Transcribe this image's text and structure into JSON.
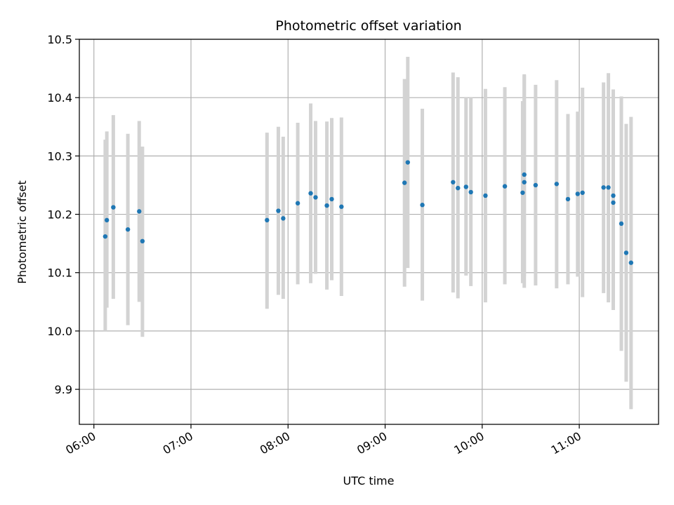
{
  "chart_data": {
    "type": "scatter",
    "title": "Photometric offset variation",
    "xlabel": "UTC time",
    "ylabel": "Photometric offset",
    "x_format": "HH:MM",
    "xlim": [
      "05:51",
      "11:49"
    ],
    "ylim": [
      9.84,
      10.5
    ],
    "x_ticks": [
      "06:00",
      "07:00",
      "08:00",
      "09:00",
      "10:00",
      "11:00"
    ],
    "y_ticks": [
      "9.9",
      "10.0",
      "10.1",
      "10.2",
      "10.3",
      "10.4",
      "10.5"
    ],
    "grid": true,
    "legend": "none",
    "colors": {
      "points": "#1f77b4",
      "error_bars": "#d3d3d3",
      "grid": "#b0b0b0"
    },
    "series": [
      {
        "points": [
          {
            "x": "06:07",
            "y": 10.162,
            "ylo": 10.0,
            "yhi": 10.328
          },
          {
            "x": "06:08",
            "y": 10.19,
            "ylo": 10.04,
            "yhi": 10.342
          },
          {
            "x": "06:12",
            "y": 10.212,
            "ylo": 10.055,
            "yhi": 10.37
          },
          {
            "x": "06:21",
            "y": 10.174,
            "ylo": 10.01,
            "yhi": 10.338
          },
          {
            "x": "06:28",
            "y": 10.205,
            "ylo": 10.05,
            "yhi": 10.36
          },
          {
            "x": "06:30",
            "y": 10.154,
            "ylo": 9.99,
            "yhi": 10.316
          },
          {
            "x": "07:47",
            "y": 10.19,
            "ylo": 10.038,
            "yhi": 10.34
          },
          {
            "x": "07:54",
            "y": 10.206,
            "ylo": 10.062,
            "yhi": 10.35
          },
          {
            "x": "07:57",
            "y": 10.193,
            "ylo": 10.055,
            "yhi": 10.333
          },
          {
            "x": "08:06",
            "y": 10.219,
            "ylo": 10.08,
            "yhi": 10.357
          },
          {
            "x": "08:14",
            "y": 10.236,
            "ylo": 10.082,
            "yhi": 10.39
          },
          {
            "x": "08:17",
            "y": 10.229,
            "ylo": 10.098,
            "yhi": 10.36
          },
          {
            "x": "08:24",
            "y": 10.215,
            "ylo": 10.071,
            "yhi": 10.359
          },
          {
            "x": "08:27",
            "y": 10.226,
            "ylo": 10.087,
            "yhi": 10.365
          },
          {
            "x": "08:33",
            "y": 10.213,
            "ylo": 10.06,
            "yhi": 10.366
          },
          {
            "x": "09:12",
            "y": 10.254,
            "ylo": 10.076,
            "yhi": 10.432
          },
          {
            "x": "09:14",
            "y": 10.289,
            "ylo": 10.108,
            "yhi": 10.47
          },
          {
            "x": "09:23",
            "y": 10.216,
            "ylo": 10.052,
            "yhi": 10.381
          },
          {
            "x": "09:42",
            "y": 10.255,
            "ylo": 10.066,
            "yhi": 10.443
          },
          {
            "x": "09:45",
            "y": 10.245,
            "ylo": 10.056,
            "yhi": 10.435
          },
          {
            "x": "09:50",
            "y": 10.247,
            "ylo": 10.095,
            "yhi": 10.4
          },
          {
            "x": "09:53",
            "y": 10.238,
            "ylo": 10.077,
            "yhi": 10.4
          },
          {
            "x": "10:02",
            "y": 10.232,
            "ylo": 10.049,
            "yhi": 10.415
          },
          {
            "x": "10:14",
            "y": 10.248,
            "ylo": 10.08,
            "yhi": 10.418
          },
          {
            "x": "10:25",
            "y": 10.237,
            "ylo": 10.082,
            "yhi": 10.394
          },
          {
            "x": "10:26",
            "y": 10.268,
            "ylo": 10.094,
            "yhi": 10.44
          },
          {
            "x": "10:26",
            "y": 10.255,
            "ylo": 10.074,
            "yhi": 10.438
          },
          {
            "x": "10:33",
            "y": 10.25,
            "ylo": 10.078,
            "yhi": 10.422
          },
          {
            "x": "10:46",
            "y": 10.252,
            "ylo": 10.073,
            "yhi": 10.43
          },
          {
            "x": "10:53",
            "y": 10.226,
            "ylo": 10.08,
            "yhi": 10.372
          },
          {
            "x": "10:59",
            "y": 10.235,
            "ylo": 10.093,
            "yhi": 10.376
          },
          {
            "x": "11:02",
            "y": 10.237,
            "ylo": 10.058,
            "yhi": 10.417
          },
          {
            "x": "11:15",
            "y": 10.246,
            "ylo": 10.065,
            "yhi": 10.426
          },
          {
            "x": "11:18",
            "y": 10.246,
            "ylo": 10.049,
            "yhi": 10.442
          },
          {
            "x": "11:21",
            "y": 10.232,
            "ylo": 10.05,
            "yhi": 10.414
          },
          {
            "x": "11:21",
            "y": 10.22,
            "ylo": 10.036,
            "yhi": 10.402
          },
          {
            "x": "11:26",
            "y": 10.184,
            "ylo": 9.966,
            "yhi": 10.402
          },
          {
            "x": "11:29",
            "y": 10.134,
            "ylo": 9.913,
            "yhi": 10.355
          },
          {
            "x": "11:32",
            "y": 10.117,
            "ylo": 9.866,
            "yhi": 10.367
          }
        ]
      }
    ]
  }
}
